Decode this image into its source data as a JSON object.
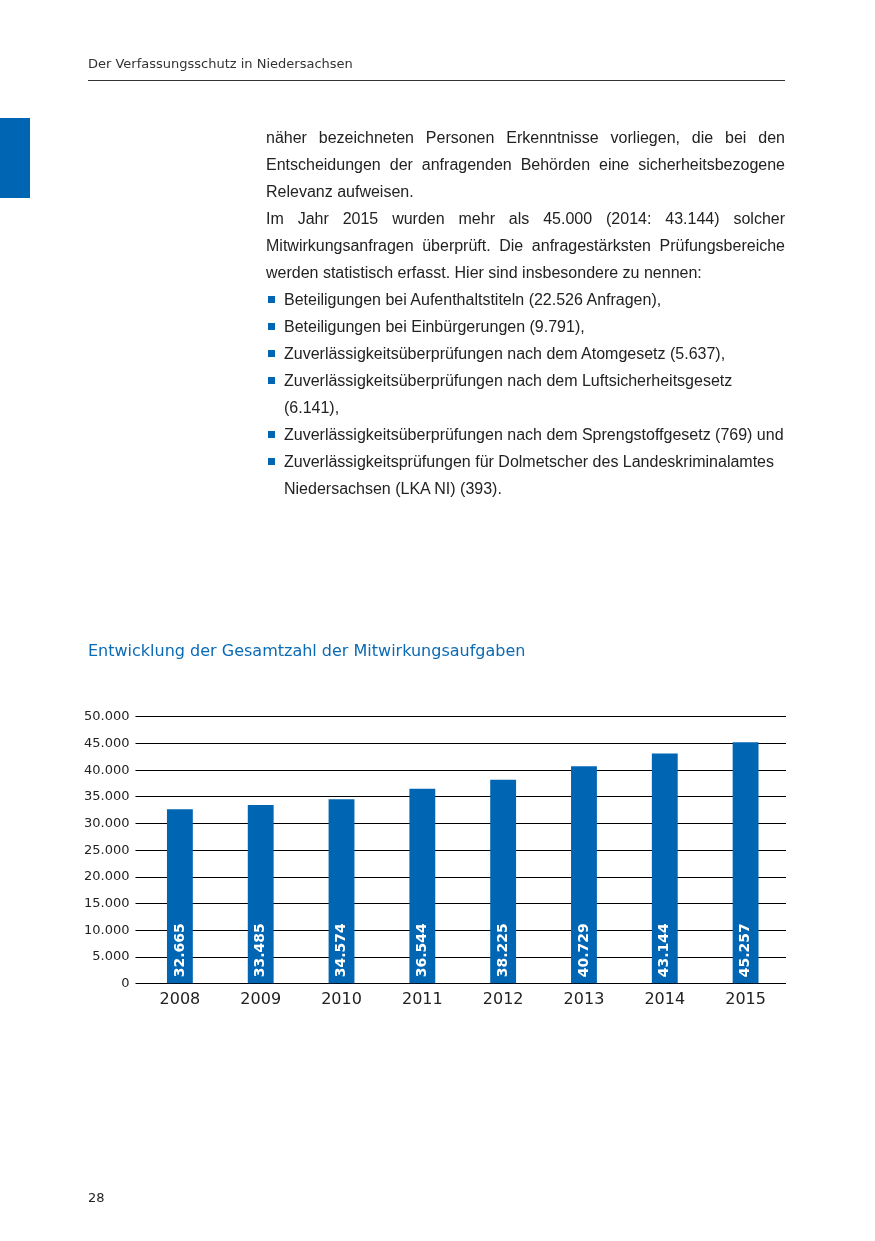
{
  "chart_data": {
    "type": "bar",
    "title": "Entwicklung der Gesamtzahl der Mitwirkungsaufgaben",
    "categories": [
      "2008",
      "2009",
      "2010",
      "2011",
      "2012",
      "2013",
      "2014",
      "2015"
    ],
    "values": [
      32665,
      33485,
      34574,
      36544,
      38225,
      40729,
      43144,
      45257
    ],
    "value_labels": [
      "32.665",
      "33.485",
      "34.574",
      "36.544",
      "38.225",
      "40.729",
      "43.144",
      "45.257"
    ],
    "color": "#0066b3",
    "ylim": [
      0,
      50000
    ],
    "yticks": [
      0,
      {
        "value": 5000,
        "label": "5.000"
      },
      {
        "value": 10000,
        "label": "10.000"
      },
      {
        "value": 15000,
        "label": "15.000"
      },
      {
        "value": 20000,
        "label": "20.000"
      },
      {
        "value": 25000,
        "label": "25.000"
      },
      {
        "value": 30000,
        "label": "30.000"
      },
      {
        "value": 35000,
        "label": "35.000"
      },
      {
        "value": 40000,
        "label": "40.000"
      },
      {
        "value": 45000,
        "label": "45.000"
      },
      {
        "value": 50000,
        "label": "50.000"
      }
    ],
    "grid": "y",
    "legend": false,
    "annotations": [
      "Der Verfassungsschutz in Niedersachsen",
      "näher bezeichneten Personen Erkenntnisse vorliegen, die bei den Entscheidungen der anfragenden Behörden eine sicherheitsbezogene Relevanz aufweisen.",
      "Im Jahr 2015 wurden mehr als 45.000 (2014: 43.144) solcher Mitwirkungsanfragen überprüft. Die anfragestärksten Prüfungsbereiche werden statistisch erfasst. Hier sind insbesondere zu nennen:",
      "Beteiligungen bei Aufenthaltstiteln (22.526 Anfragen),",
      "Beteiligungen bei Einbürgerungen (9.791),",
      "Zuverlässigkeitsüberprüfungen nach dem Atomgesetz (5.637),",
      "Zuverlässigkeitsüberprüfungen nach dem Luftsicherheitsgesetz (6.141),",
      "Zuverlässigkeitsüberprüfungen nach dem Sprengstoffgesetz (769) und",
      "Zuverlässigkeitsprüfungen für Dolmetscher des Landeskriminalamtes Niedersachsen (LKA NI) (393).",
      "28"
    ]
  }
}
